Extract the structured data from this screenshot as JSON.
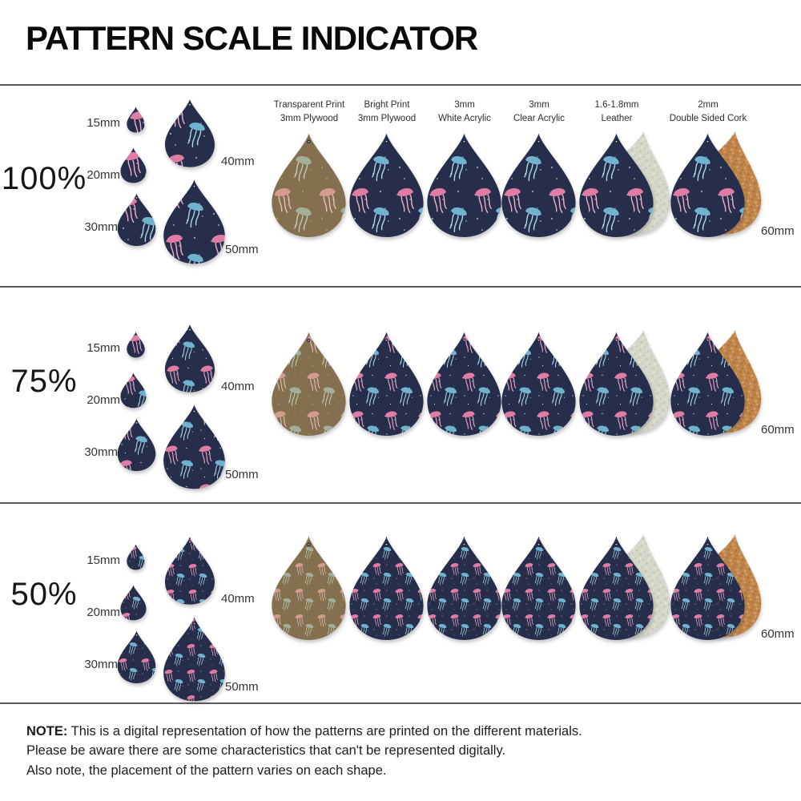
{
  "title": "PATTERN SCALE INDICATOR",
  "rows": [
    {
      "scale_label": "100%",
      "pattern_scale": 1
    },
    {
      "scale_label": "75%",
      "pattern_scale": 0.75
    },
    {
      "scale_label": "50%",
      "pattern_scale": 0.5
    }
  ],
  "size_labels": {
    "s15": "15mm",
    "s20": "20mm",
    "s30": "30mm",
    "s40": "40mm",
    "s50": "50mm",
    "s60": "60mm"
  },
  "materials": [
    {
      "name": "Transparent Print",
      "sub": "3mm Plywood",
      "colorway": "plywood",
      "backing": null
    },
    {
      "name": "Bright Print",
      "sub": "3mm Plywood",
      "colorway": "bright",
      "backing": null
    },
    {
      "name": "3mm",
      "sub": "White Acrylic",
      "colorway": "bright",
      "backing": null
    },
    {
      "name": "3mm",
      "sub": "Clear Acrylic",
      "colorway": "bright",
      "backing": null
    },
    {
      "name": "1.6-1.8mm",
      "sub": "Leather",
      "colorway": "bright",
      "backing": "leather"
    },
    {
      "name": "2mm",
      "sub": "Double Sided Cork",
      "colorway": "bright",
      "backing": "cork"
    }
  ],
  "note": {
    "label": "NOTE:",
    "line1": "This is a digital representation of how the patterns are printed on the different materials.",
    "line2": "Please be aware there are some characteristics that can't be represented digitally.",
    "line3": "Also note, the placement of the pattern varies on each shape."
  },
  "colors": {
    "background": "#ffffff",
    "separator": "#5c5c5c",
    "pattern_navy": "#272e4c",
    "jelly_pink": "#e07ba4",
    "jelly_pink_tentacle": "#f2aec9",
    "jelly_blue": "#6fb3cf",
    "jelly_blue_tentacle": "#a8d8e8",
    "plywood_wood": "#84704f",
    "plywood_pink": "#d59b90",
    "plywood_pink_tentacle": "#e7c0b6",
    "plywood_sage": "#a2af9a",
    "plywood_sage_tentacle": "#c0ccb8",
    "leather_back": "#d6d8ca",
    "cork_back": "#c0854a",
    "speckle": "#ffffff"
  }
}
